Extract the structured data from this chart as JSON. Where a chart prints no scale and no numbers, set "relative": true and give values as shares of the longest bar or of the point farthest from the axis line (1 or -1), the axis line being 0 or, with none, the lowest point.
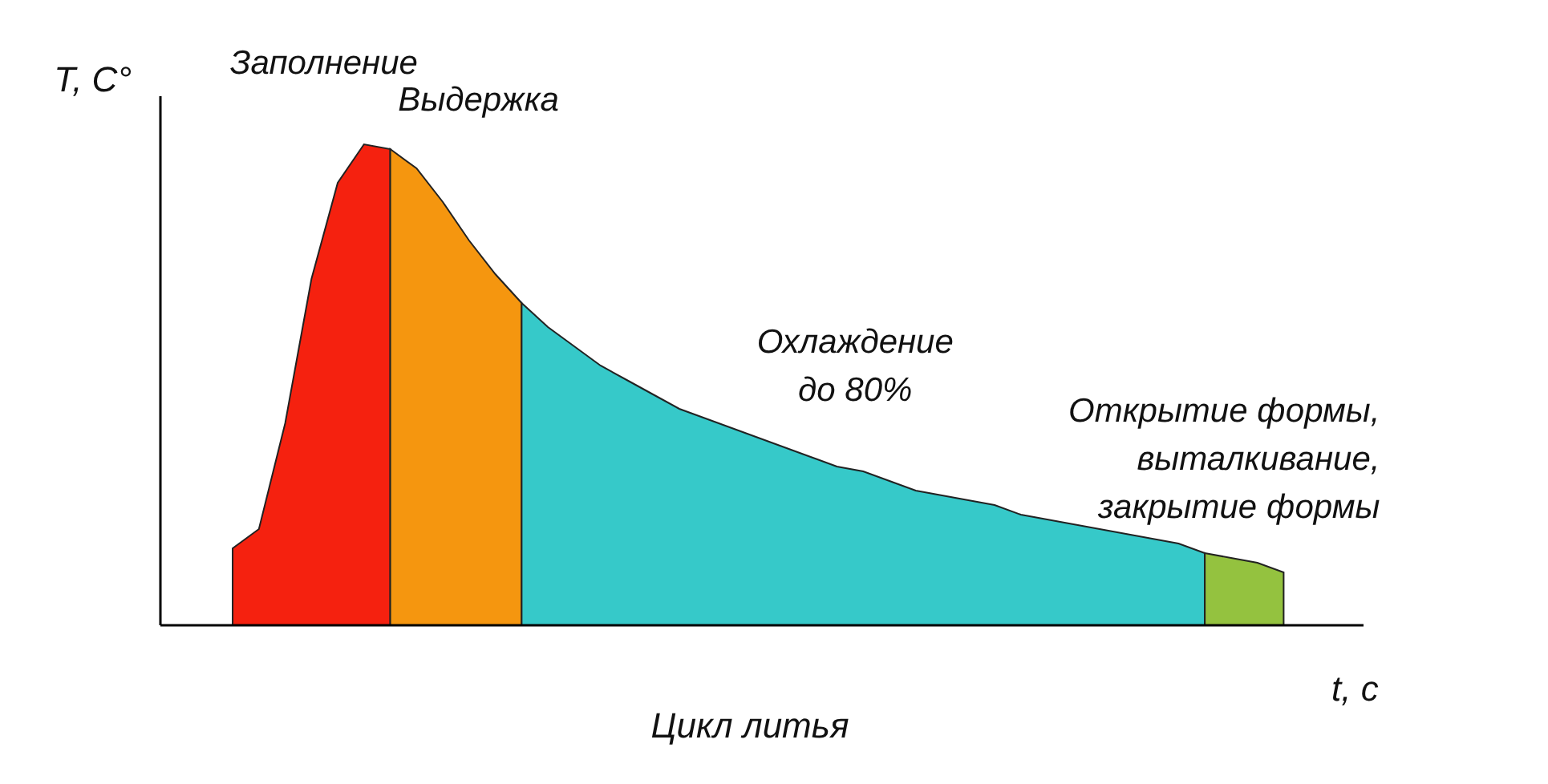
{
  "chart_data": {
    "type": "area",
    "relative": true,
    "xlabel": "t, c",
    "ylabel": "T, C°",
    "categories": [
      null,
      null,
      null,
      null,
      null,
      null,
      null,
      null,
      null,
      null,
      null,
      null,
      null,
      null,
      null,
      null,
      null,
      null,
      null,
      null,
      null,
      null,
      null,
      null,
      null,
      null,
      null,
      null,
      null,
      null,
      null,
      null,
      null,
      null,
      null,
      null,
      null,
      null,
      null,
      null,
      null
    ],
    "series": [
      {
        "name": "Заполнение",
        "color": "#f5210f",
        "values": [
          0.16,
          0.2,
          0.42,
          0.72,
          0.92,
          1.0,
          0.99,
          null,
          null,
          null,
          null,
          null,
          null,
          null,
          null,
          null,
          null,
          null,
          null,
          null,
          null,
          null,
          null,
          null,
          null,
          null,
          null,
          null,
          null,
          null,
          null,
          null,
          null,
          null,
          null,
          null,
          null,
          null,
          null,
          null,
          null
        ]
      },
      {
        "name": "Выдержка",
        "color": "#f5960f",
        "values": [
          null,
          null,
          null,
          null,
          null,
          null,
          0.99,
          0.95,
          0.88,
          0.8,
          0.73,
          0.67,
          null,
          null,
          null,
          null,
          null,
          null,
          null,
          null,
          null,
          null,
          null,
          null,
          null,
          null,
          null,
          null,
          null,
          null,
          null,
          null,
          null,
          null,
          null,
          null,
          null,
          null,
          null,
          null,
          null
        ]
      },
      {
        "name": "Охлаждение\nдо 80%",
        "color": "#36c9c9",
        "values": [
          null,
          null,
          null,
          null,
          null,
          null,
          null,
          null,
          null,
          null,
          null,
          0.67,
          0.62,
          0.58,
          0.54,
          0.51,
          0.48,
          0.45,
          0.43,
          0.41,
          0.39,
          0.37,
          0.35,
          0.33,
          0.32,
          0.3,
          0.28,
          0.27,
          0.26,
          0.25,
          0.23,
          0.22,
          0.21,
          0.2,
          0.19,
          0.18,
          0.17,
          0.15,
          null,
          null,
          null
        ]
      },
      {
        "name": "Открытие формы,\nвыталкивание,\nзакрытие формы",
        "color": "#94c23f",
        "values": [
          null,
          null,
          null,
          null,
          null,
          null,
          null,
          null,
          null,
          null,
          null,
          null,
          null,
          null,
          null,
          null,
          null,
          null,
          null,
          null,
          null,
          null,
          null,
          null,
          null,
          null,
          null,
          null,
          null,
          null,
          null,
          null,
          null,
          null,
          null,
          null,
          null,
          0.15,
          0.14,
          0.13,
          0.11
        ]
      }
    ],
    "annotations": [
      "Цикл литья"
    ]
  }
}
